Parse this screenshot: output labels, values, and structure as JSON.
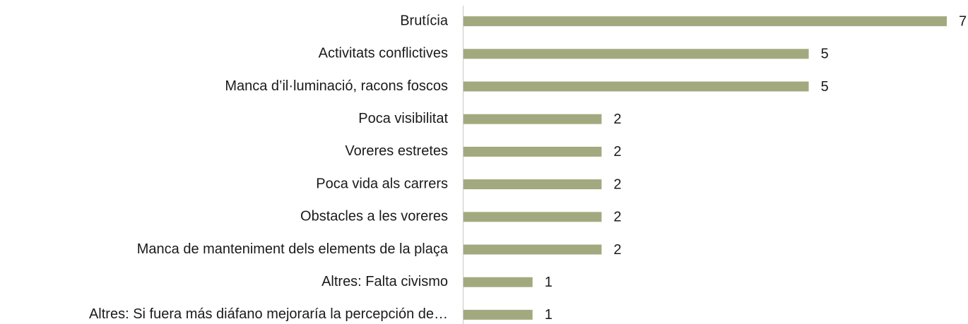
{
  "chart_data": {
    "type": "bar",
    "orientation": "horizontal",
    "categories": [
      "Brutícia",
      "Activitats conflictives",
      "Manca d’il·luminació, racons foscos",
      "Poca visibilitat",
      "Voreres estretes",
      "Poca vida als carrers",
      "Obstacles a les voreres",
      "Manca de manteniment dels elements de la plaça",
      "Altres: Falta civismo",
      "Altres: Si fuera más diáfano mejoraría la percepción de…"
    ],
    "values": [
      7,
      5,
      5,
      2,
      2,
      2,
      2,
      2,
      1,
      1
    ],
    "color": "#a3a97f",
    "xlim": [
      0,
      7
    ]
  }
}
